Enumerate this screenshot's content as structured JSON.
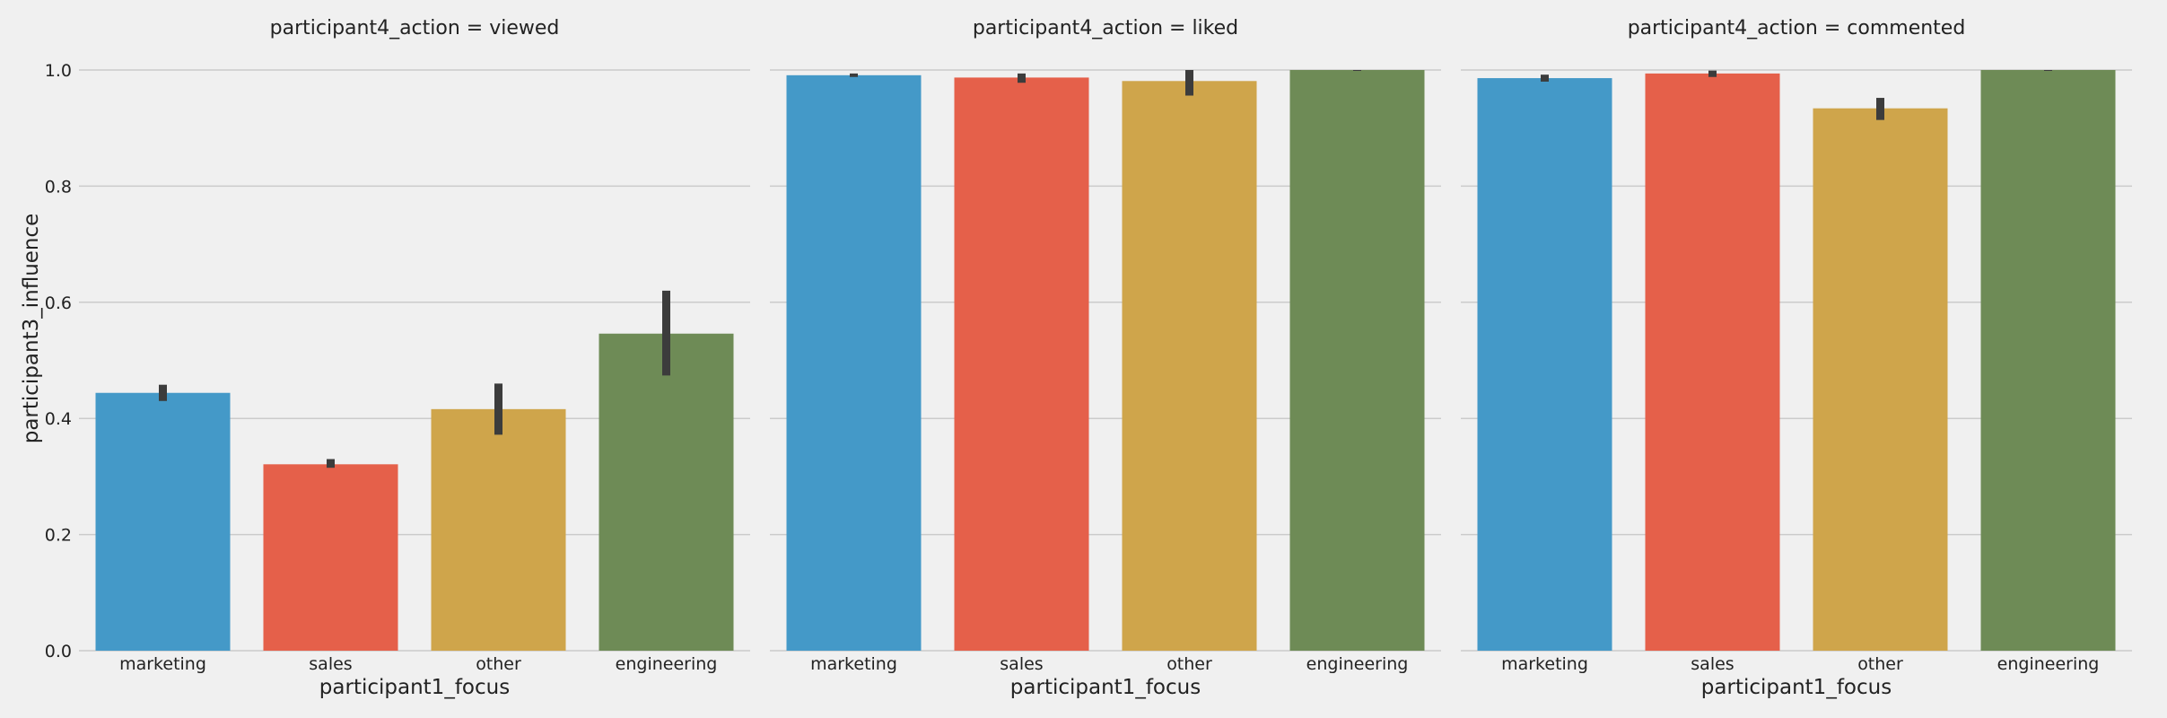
{
  "chart_data": {
    "type": "bar",
    "layout": "facet-columns",
    "facet_variable": "participant4_action",
    "xlabel": "participant1_focus",
    "ylabel": "participant3_influence",
    "ylim": [
      0,
      1.05
    ],
    "yticks": [
      "0.0",
      "0.2",
      "0.4",
      "0.6",
      "0.8",
      "1.0"
    ],
    "categories": [
      "marketing",
      "sales",
      "other",
      "engineering"
    ],
    "colors": [
      "#4499c8",
      "#e5604a",
      "#cfa54b",
      "#6e8b56"
    ],
    "error_bar_color": "#3c3c3c",
    "grid": "horizontal",
    "panels": [
      {
        "title": "participant4_action = viewed",
        "values": [
          0.444,
          0.321,
          0.416,
          0.546
        ],
        "ci_low": [
          0.43,
          0.315,
          0.372,
          0.474
        ],
        "ci_high": [
          0.458,
          0.33,
          0.46,
          0.62
        ]
      },
      {
        "title": "participant4_action = liked",
        "values": [
          0.991,
          0.987,
          0.981,
          1.0
        ],
        "ci_low": [
          0.988,
          0.978,
          0.956,
          1.0
        ],
        "ci_high": [
          0.994,
          0.994,
          1.0,
          1.0
        ]
      },
      {
        "title": "participant4_action = commented",
        "values": [
          0.986,
          0.994,
          0.934,
          1.0
        ],
        "ci_low": [
          0.98,
          0.988,
          0.914,
          1.0
        ],
        "ci_high": [
          0.992,
          0.999,
          0.952,
          1.0
        ]
      }
    ]
  }
}
